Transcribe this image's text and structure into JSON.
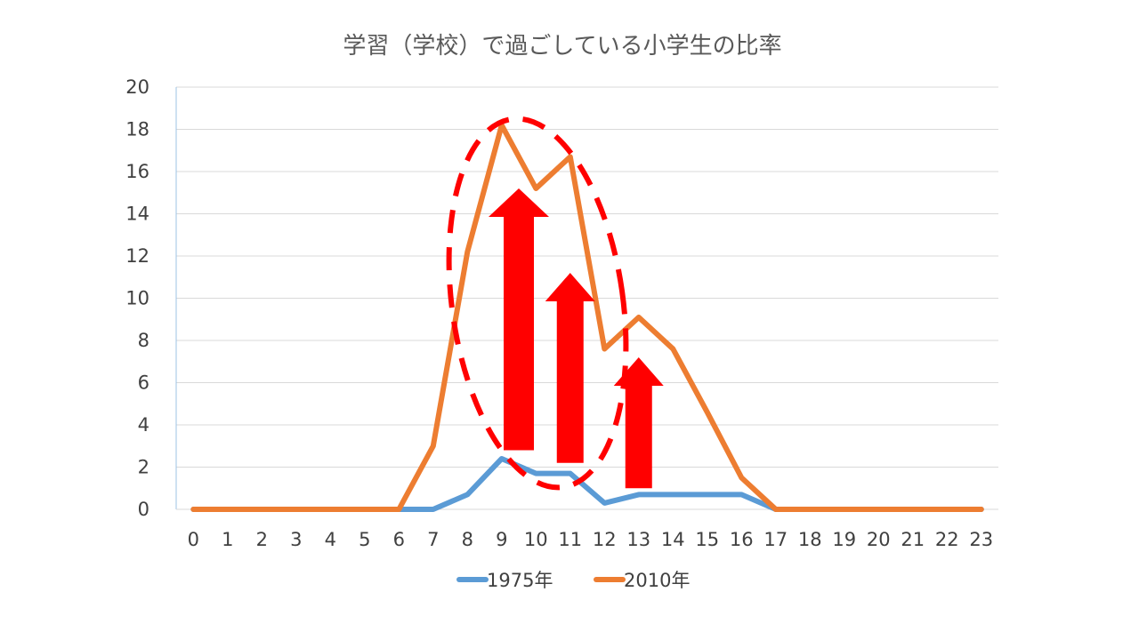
{
  "chart_data": {
    "type": "line",
    "title": "学習（学校）で過ごしている小学生の比率",
    "xlabel": "",
    "ylabel": "",
    "categories": [
      "0",
      "1",
      "2",
      "3",
      "4",
      "5",
      "6",
      "7",
      "8",
      "9",
      "10",
      "11",
      "12",
      "13",
      "14",
      "15",
      "16",
      "17",
      "18",
      "19",
      "20",
      "21",
      "22",
      "23"
    ],
    "ylim": [
      0,
      20
    ],
    "yticks": [
      0,
      2,
      4,
      6,
      8,
      10,
      12,
      14,
      16,
      18,
      20
    ],
    "grid": true,
    "legend_position": "bottom",
    "series": [
      {
        "name": "1975年",
        "color": "#5B9BD5",
        "values": [
          0,
          0,
          0,
          0,
          0,
          0,
          0,
          0,
          0.7,
          2.4,
          1.7,
          1.7,
          0.3,
          0.7,
          0.7,
          0.7,
          0.7,
          0,
          0,
          0,
          0,
          0,
          0,
          0
        ]
      },
      {
        "name": "2010年",
        "color": "#ED7D31",
        "values": [
          0,
          0,
          0,
          0,
          0,
          0,
          0,
          3,
          12.2,
          18.2,
          15.2,
          16.7,
          7.6,
          9.1,
          7.6,
          4.6,
          1.5,
          0,
          0,
          0,
          0,
          0,
          0,
          0
        ]
      }
    ],
    "annotations": {
      "arrow_color": "#FF0000",
      "ellipse_color": "#FF0000",
      "ellipse_style": "dashed",
      "arrows": [
        {
          "x": 9.5,
          "y_from": 2.8,
          "y_to": 15.2
        },
        {
          "x": 11,
          "y_from": 2.2,
          "y_to": 11.2
        },
        {
          "x": 13,
          "y_from": 1.0,
          "y_to": 7.2
        }
      ]
    }
  }
}
